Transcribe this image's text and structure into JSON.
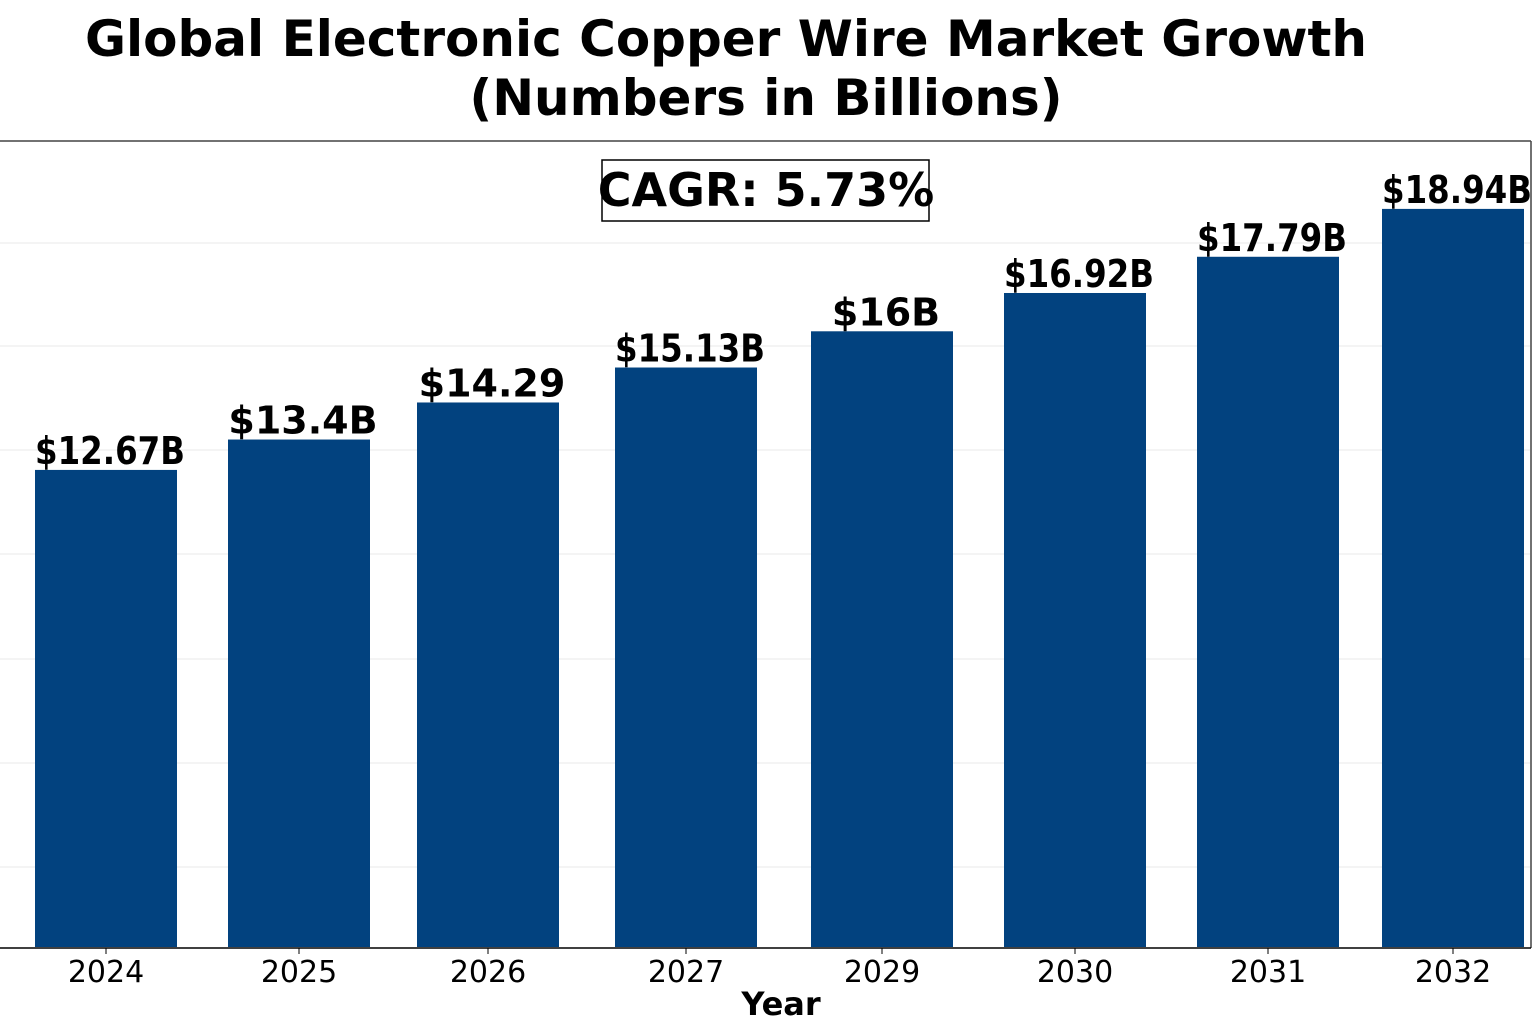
{
  "chart_data": {
    "type": "bar",
    "title_line1": "Global Electronic Copper Wire Market Growth",
    "title_line2": "(Numbers in Billions)",
    "xlabel": "Year",
    "ylabel": "",
    "categories": [
      "2024",
      "2025",
      "2026",
      "2027",
      "2029",
      "2030",
      "2031",
      "2032"
    ],
    "values": [
      12.67,
      13.4,
      14.29,
      15.13,
      16.0,
      16.92,
      17.79,
      18.94
    ],
    "data_labels": [
      "$12.67B",
      "$13.4B",
      "$14.29",
      "$15.13B",
      "$16B",
      "$16.92B",
      "$17.79B",
      "$18.94B"
    ],
    "annotation": "CAGR: 5.73%",
    "grid": "horizontal",
    "legend": "none",
    "bar_color": "#02427f"
  }
}
